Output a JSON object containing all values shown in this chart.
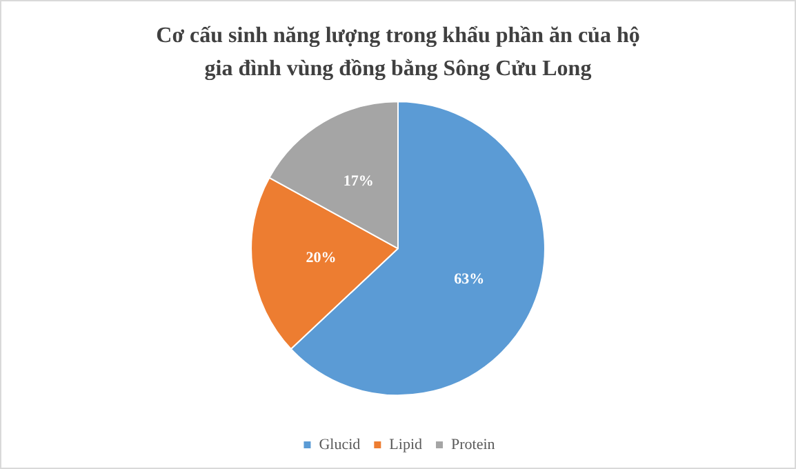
{
  "chart_data": {
    "type": "pie",
    "title": "Cơ cấu sinh năng lượng trong khẩu phần ăn của hộ\ngia đình vùng đồng bằng Sông Cửu Long",
    "categories": [
      "Glucid",
      "Lipid",
      "Protein"
    ],
    "values": [
      63,
      20,
      17
    ],
    "colors": [
      "#5b9bd5",
      "#ed7d31",
      "#a5a5a5"
    ],
    "value_labels": [
      "63%",
      "20%",
      "17%"
    ],
    "legend": "bottom"
  }
}
